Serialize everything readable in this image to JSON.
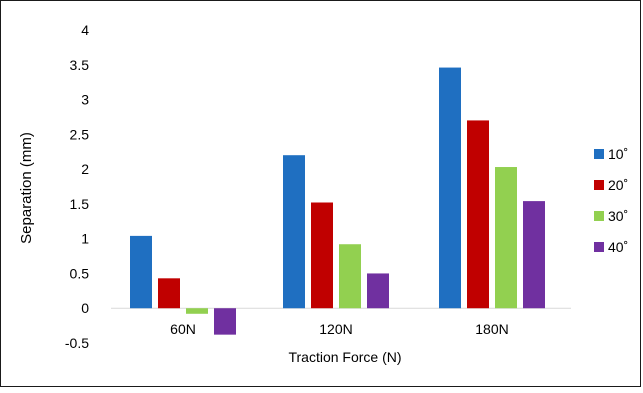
{
  "chart_data": {
    "type": "bar",
    "title": "",
    "xlabel": "Traction Force (N)",
    "ylabel": "Separation (mm)",
    "ylim": [
      -0.5,
      4
    ],
    "yticks": [
      "-0.5",
      "0",
      "0.5",
      "1",
      "1.5",
      "2",
      "2.5",
      "3",
      "3.5",
      "4"
    ],
    "categories": [
      "60N",
      "120N",
      "180N"
    ],
    "series": [
      {
        "name": "10˚",
        "color": "#1f6fc1",
        "values": [
          1.04,
          2.2,
          3.46
        ]
      },
      {
        "name": "20˚",
        "color": "#c00000",
        "values": [
          0.43,
          1.52,
          2.7
        ]
      },
      {
        "name": "30˚",
        "color": "#92d050",
        "values": [
          -0.08,
          0.92,
          2.03
        ]
      },
      {
        "name": "40˚",
        "color": "#7030a0",
        "values": [
          -0.38,
          0.5,
          1.54
        ]
      }
    ],
    "grid": false,
    "legend_position": "right"
  }
}
